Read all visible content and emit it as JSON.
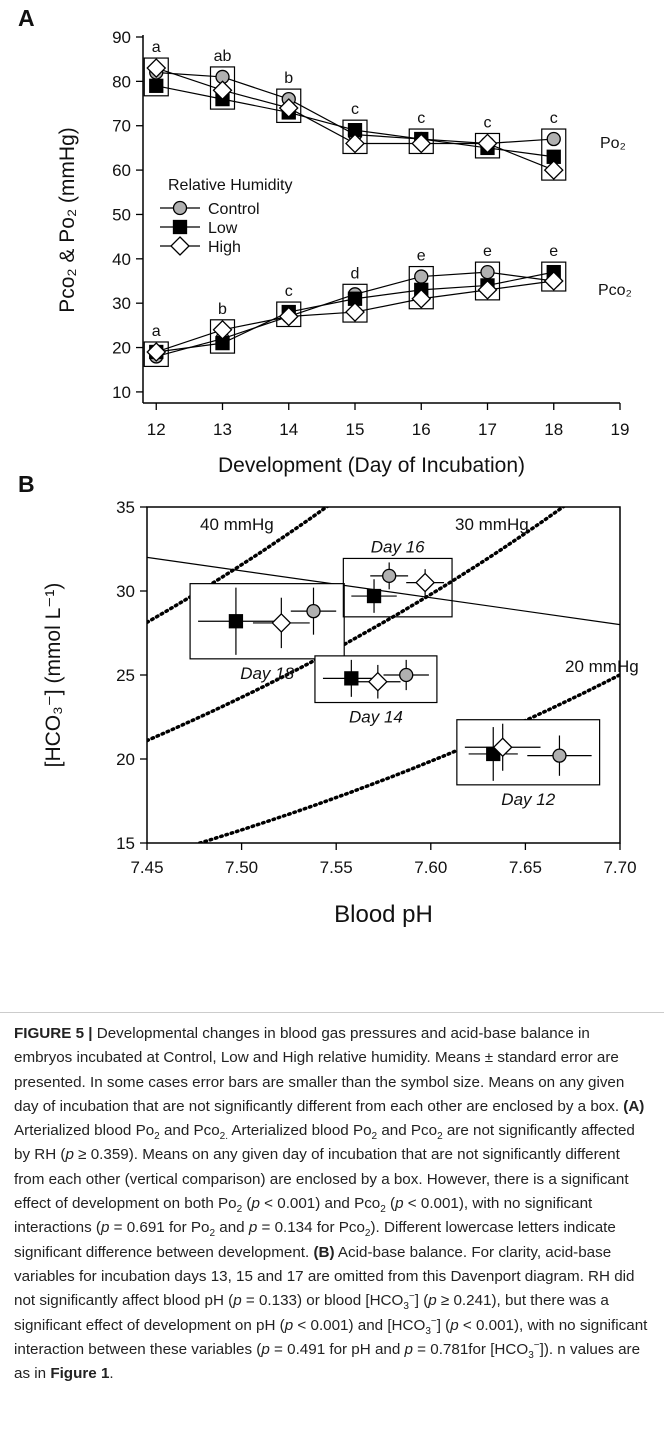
{
  "chart_data": [
    {
      "type": "line",
      "panel": "A",
      "ylabel": "Pco₂ & Po₂ (mmHg)",
      "xlabel": "Development (Day of  Incubation)",
      "legend_title": "Relative Humidity",
      "x": [
        12,
        13,
        14,
        15,
        16,
        17,
        18
      ],
      "xlim": [
        11.8,
        19
      ],
      "xticks": [
        12,
        13,
        14,
        15,
        16,
        17,
        18,
        19
      ],
      "ylim": [
        7.5,
        90
      ],
      "yticks": [
        10,
        20,
        30,
        40,
        50,
        60,
        70,
        80,
        90
      ],
      "series": [
        {
          "name": "Control",
          "color": "#b0b0b0",
          "marker": "circle",
          "po2": [
            82,
            81,
            76,
            68,
            67,
            66,
            67
          ],
          "pco2": [
            18,
            22,
            27,
            32,
            36,
            37,
            35
          ]
        },
        {
          "name": "Low",
          "color": "#000000",
          "marker": "square",
          "po2": [
            79,
            76,
            73,
            69,
            67,
            65,
            63
          ],
          "pco2": [
            19,
            21,
            28,
            31,
            33,
            34,
            37
          ]
        },
        {
          "name": "High",
          "color": "#ffffff",
          "marker": "diamond",
          "po2": [
            83,
            78,
            74,
            66,
            66,
            66,
            60
          ],
          "pco2": [
            19,
            24,
            27,
            28,
            31,
            33,
            35
          ]
        }
      ],
      "po2_letters": [
        "a",
        "ab",
        "b",
        "c",
        "c",
        "c",
        "c"
      ],
      "pco2_letters": [
        "a",
        "b",
        "c",
        "d",
        "e",
        "e",
        "e"
      ],
      "po2_label": "Po₂",
      "pco2_label": "Pco₂"
    },
    {
      "type": "scatter",
      "panel": "B",
      "ylabel": "[HCO₃⁻] (mmol L⁻¹)",
      "xlabel": "Blood pH",
      "xlim": [
        7.45,
        7.7
      ],
      "xticks": [
        {
          "value": 7.45,
          "label": "7.45"
        },
        {
          "value": 7.5,
          "label": "7.50"
        },
        {
          "value": 7.55,
          "label": "7.55"
        },
        {
          "value": 7.6,
          "label": "7.60"
        },
        {
          "value": 7.65,
          "label": "7.65"
        },
        {
          "value": 7.7,
          "label": "7.70"
        }
      ],
      "ylim": [
        15,
        35
      ],
      "yticks": [
        15,
        20,
        25,
        30,
        35
      ],
      "markers": [
        "circle",
        "square",
        "diamond"
      ],
      "marker_fill": [
        "#b0b0b0",
        "#000000",
        "#ffffff"
      ],
      "isopleths": [
        {
          "pco2": 40,
          "label": "40 mmHg"
        },
        {
          "pco2": 30,
          "label": "30 mmHg"
        },
        {
          "pco2": 20,
          "label": "20 mmHg"
        }
      ],
      "buffer_line": {
        "x": [
          7.45,
          7.7
        ],
        "y": [
          32,
          28
        ]
      },
      "groups": [
        {
          "label": "Day 18",
          "label_side": "below",
          "points": [
            {
              "x": 7.538,
              "y": 28.8,
              "xerr": 0.012,
              "yerr": 1.4
            },
            {
              "x": 7.497,
              "y": 28.2,
              "xerr": 0.02,
              "yerr": 2.0
            },
            {
              "x": 7.521,
              "y": 28.1,
              "xerr": 0.015,
              "yerr": 1.5
            }
          ]
        },
        {
          "label": "Day 16",
          "label_side": "above",
          "points": [
            {
              "x": 7.578,
              "y": 30.9,
              "xerr": 0.01,
              "yerr": 0.8
            },
            {
              "x": 7.57,
              "y": 29.7,
              "xerr": 0.012,
              "yerr": 1.0
            },
            {
              "x": 7.597,
              "y": 30.5,
              "xerr": 0.01,
              "yerr": 0.8
            }
          ]
        },
        {
          "label": "Day 14",
          "label_side": "below",
          "points": [
            {
              "x": 7.587,
              "y": 25.0,
              "xerr": 0.012,
              "yerr": 0.9
            },
            {
              "x": 7.558,
              "y": 24.8,
              "xerr": 0.015,
              "yerr": 1.1
            },
            {
              "x": 7.572,
              "y": 24.6,
              "xerr": 0.012,
              "yerr": 1.0
            }
          ]
        },
        {
          "label": "Day 12",
          "label_side": "below",
          "points": [
            {
              "x": 7.668,
              "y": 20.2,
              "xerr": 0.017,
              "yerr": 1.2
            },
            {
              "x": 7.633,
              "y": 20.3,
              "xerr": 0.013,
              "yerr": 1.6
            },
            {
              "x": 7.638,
              "y": 20.7,
              "xerr": 0.02,
              "yerr": 1.4
            }
          ]
        }
      ]
    }
  ],
  "caption": [
    [
      "FIGURE 5 |",
      "b"
    ],
    [
      " Developmental changes in blood gas pressures and acid-base balance in embryos incubated at Control, Low and High relative humidity. Means ± standard error are presented. In some cases error bars are smaller than the symbol size. Means on any given day of incubation that are not significantly different from each other are enclosed by a box. ",
      ""
    ],
    [
      "(A)",
      "b"
    ],
    [
      " Arterialized blood Po",
      ""
    ],
    [
      "2",
      "sub"
    ],
    [
      " and Pco",
      ""
    ],
    [
      "2.",
      "sub"
    ],
    [
      " Arterialized blood Po",
      ""
    ],
    [
      "2",
      "sub"
    ],
    [
      " and Pco",
      ""
    ],
    [
      "2",
      "sub"
    ],
    [
      " are not significantly affected by RH (",
      ""
    ],
    [
      "p",
      "i"
    ],
    [
      " ≥ 0.359). Means on any given day of incubation that are not significantly different from each other (vertical comparison) are enclosed by a box. However, there is a significant effect of development on both Po",
      ""
    ],
    [
      "2",
      "sub"
    ],
    [
      " (",
      ""
    ],
    [
      "p",
      "i"
    ],
    [
      " < 0.001) and Pco",
      ""
    ],
    [
      "2",
      "sub"
    ],
    [
      " (",
      ""
    ],
    [
      "p",
      "i"
    ],
    [
      " < 0.001), with no significant interactions (",
      ""
    ],
    [
      "p",
      "i"
    ],
    [
      " = 0.691 for Po",
      ""
    ],
    [
      "2",
      "sub"
    ],
    [
      " and ",
      ""
    ],
    [
      "p",
      "i"
    ],
    [
      " = 0.134 for Pco",
      ""
    ],
    [
      "2",
      "sub"
    ],
    [
      "). Different lowercase letters indicate significant difference between development. ",
      ""
    ],
    [
      "(B)",
      "b"
    ],
    [
      " Acid-base balance. For clarity, acid-base variables for incubation days 13, 15 and 17 are omitted from this Davenport diagram. RH did not significantly affect blood pH (",
      ""
    ],
    [
      "p",
      "i"
    ],
    [
      " = 0.133) or blood [HCO",
      ""
    ],
    [
      "3",
      "sub"
    ],
    [
      "−",
      "sup"
    ],
    [
      "] (",
      ""
    ],
    [
      "p",
      "i"
    ],
    [
      " ≥ 0.241), but there was a significant effect of development on pH (",
      ""
    ],
    [
      "p",
      "i"
    ],
    [
      " < 0.001) and [HCO",
      ""
    ],
    [
      "3",
      "sub"
    ],
    [
      "−",
      "sup"
    ],
    [
      "] (",
      ""
    ],
    [
      "p",
      "i"
    ],
    [
      " < 0.001), with no significant interaction between these variables (",
      ""
    ],
    [
      "p",
      "i"
    ],
    [
      " = 0.491 for pH and ",
      ""
    ],
    [
      "p",
      "i"
    ],
    [
      " = 0.781for [HCO",
      ""
    ],
    [
      "3",
      "sub"
    ],
    [
      "−",
      "sup"
    ],
    [
      "]). n values are as in ",
      ""
    ],
    [
      "Figure 1",
      "b"
    ],
    [
      ".",
      ""
    ]
  ]
}
